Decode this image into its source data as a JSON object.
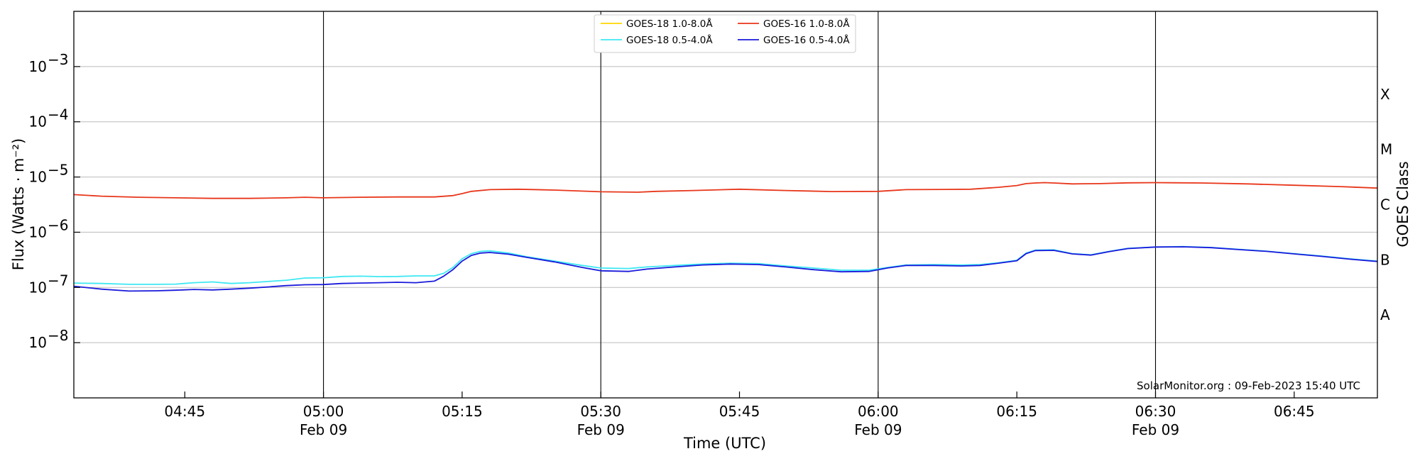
{
  "chart_data": {
    "type": "line",
    "xlabel": "Time (UTC)",
    "ylabel": "Flux (Watts · m⁻²)",
    "ylabel_right": "GOES Class",
    "credit": "SolarMonitor.org : 09-Feb-2023 15:40 UTC",
    "xlim_minutes": [
      "04:33",
      "06:54"
    ],
    "ylim_log10": [
      -9,
      -2
    ],
    "yscale": "log",
    "y_ticks": [
      {
        "exp": -8,
        "label_base": "10",
        "label_exp": "−8"
      },
      {
        "exp": -7,
        "label_base": "10",
        "label_exp": "−7"
      },
      {
        "exp": -6,
        "label_base": "10",
        "label_exp": "−6"
      },
      {
        "exp": -5,
        "label_base": "10",
        "label_exp": "−5"
      },
      {
        "exp": -4,
        "label_base": "10",
        "label_exp": "−4"
      },
      {
        "exp": -3,
        "label_base": "10",
        "label_exp": "−3"
      }
    ],
    "goes_classes": [
      {
        "label": "A",
        "at_exp": -7.5
      },
      {
        "label": "B",
        "at_exp": -6.5
      },
      {
        "label": "C",
        "at_exp": -5.5
      },
      {
        "label": "M",
        "at_exp": -4.5
      },
      {
        "label": "X",
        "at_exp": -3.5
      }
    ],
    "x_ticks": [
      {
        "time": "04:45",
        "label": "04:45",
        "sub": ""
      },
      {
        "time": "05:00",
        "label": "05:00",
        "sub": "Feb 09"
      },
      {
        "time": "05:15",
        "label": "05:15",
        "sub": ""
      },
      {
        "time": "05:30",
        "label": "05:30",
        "sub": "Feb 09"
      },
      {
        "time": "05:45",
        "label": "05:45",
        "sub": ""
      },
      {
        "time": "06:00",
        "label": "06:00",
        "sub": "Feb 09"
      },
      {
        "time": "06:15",
        "label": "06:15",
        "sub": ""
      },
      {
        "time": "06:30",
        "label": "06:30",
        "sub": "Feb 09"
      },
      {
        "time": "06:45",
        "label": "06:45",
        "sub": ""
      }
    ],
    "major_vlines": [
      "05:00",
      "05:30",
      "06:00",
      "06:30"
    ],
    "grid": "horizontal at decades",
    "legend_placement": "top-center",
    "series": [
      {
        "name": "GOES-18 1.0-8.0Å",
        "color": "#ffd700",
        "x": [],
        "y": []
      },
      {
        "name": "GOES-18 0.5-4.0Å",
        "color": "#3ee8f2",
        "x": [
          "04:33",
          "04:36",
          "04:39",
          "04:42",
          "04:44",
          "04:46",
          "04:48",
          "04:50",
          "04:52",
          "04:54",
          "04:56",
          "04:58",
          "05:00",
          "05:02",
          "05:04",
          "05:06",
          "05:08",
          "05:10",
          "05:12",
          "05:13",
          "05:14",
          "05:15",
          "05:16",
          "05:17",
          "05:18",
          "05:20",
          "05:22",
          "05:25",
          "05:28",
          "05:30",
          "05:33",
          "05:35",
          "05:38",
          "05:41",
          "05:44",
          "05:47",
          "05:50",
          "05:53",
          "05:56",
          "05:59",
          "06:01",
          "06:03",
          "06:06",
          "06:09",
          "06:11",
          "06:13",
          "06:15",
          "06:16",
          "06:17",
          "06:19",
          "06:21",
          "06:23",
          "06:25",
          "06:27",
          "06:30",
          "06:33",
          "06:36",
          "06:39",
          "06:42",
          "06:45",
          "06:48",
          "06:51",
          "06:54"
        ],
        "y": [
          1.2e-07,
          1.18e-07,
          1.14e-07,
          1.14e-07,
          1.15e-07,
          1.22e-07,
          1.26e-07,
          1.18e-07,
          1.22e-07,
          1.28e-07,
          1.35e-07,
          1.48e-07,
          1.5e-07,
          1.58e-07,
          1.6e-07,
          1.57e-07,
          1.58e-07,
          1.62e-07,
          1.62e-07,
          1.8e-07,
          2.3e-07,
          3.3e-07,
          4.1e-07,
          4.5e-07,
          4.6e-07,
          4.2e-07,
          3.6e-07,
          3e-07,
          2.5e-07,
          2.25e-07,
          2.2e-07,
          2.35e-07,
          2.5e-07,
          2.65e-07,
          2.75e-07,
          2.7e-07,
          2.45e-07,
          2.25e-07,
          2.05e-07,
          2.05e-07,
          2.3e-07,
          2.55e-07,
          2.6e-07,
          2.55e-07,
          2.6e-07,
          2.8e-07,
          3.1e-07,
          4.2e-07,
          4.75e-07,
          4.8e-07,
          4.1e-07,
          3.9e-07,
          4.5e-07,
          5.1e-07,
          5.4e-07,
          5.5e-07,
          5.3e-07,
          4.9e-07,
          4.55e-07,
          4.1e-07,
          3.7e-07,
          3.3e-07,
          3e-07
        ]
      },
      {
        "name": "GOES-16 1.0-8.0Å",
        "color": "#e8361a",
        "x": [
          "04:33",
          "04:36",
          "04:40",
          "04:44",
          "04:48",
          "04:52",
          "04:56",
          "04:58",
          "05:00",
          "05:04",
          "05:08",
          "05:12",
          "05:14",
          "05:15",
          "05:16",
          "05:18",
          "05:21",
          "05:25",
          "05:30",
          "05:34",
          "05:36",
          "05:40",
          "05:45",
          "05:50",
          "05:55",
          "06:00",
          "06:03",
          "06:07",
          "06:10",
          "06:13",
          "06:15",
          "06:16",
          "06:17",
          "06:18",
          "06:19",
          "06:21",
          "06:24",
          "06:27",
          "06:30",
          "06:35",
          "06:40",
          "06:45",
          "06:50",
          "06:54"
        ],
        "y": [
          4.8e-06,
          4.5e-06,
          4.3e-06,
          4.2e-06,
          4.1e-06,
          4.1e-06,
          4.2e-06,
          4.3e-06,
          4.2e-06,
          4.3e-06,
          4.35e-06,
          4.35e-06,
          4.6e-06,
          5e-06,
          5.5e-06,
          5.9e-06,
          6e-06,
          5.8e-06,
          5.4e-06,
          5.3e-06,
          5.5e-06,
          5.7e-06,
          6e-06,
          5.7e-06,
          5.45e-06,
          5.5e-06,
          5.9e-06,
          5.95e-06,
          6e-06,
          6.5e-06,
          7e-06,
          7.6e-06,
          7.8e-06,
          7.9e-06,
          7.8e-06,
          7.5e-06,
          7.6e-06,
          7.85e-06,
          7.9e-06,
          7.8e-06,
          7.5e-06,
          7.1e-06,
          6.7e-06,
          6.3e-06
        ]
      },
      {
        "name": "GOES-16 0.5-4.0Å",
        "color": "#1a1adb",
        "x": [
          "04:33",
          "04:36",
          "04:39",
          "04:42",
          "04:44",
          "04:46",
          "04:48",
          "04:50",
          "04:52",
          "04:54",
          "04:56",
          "04:58",
          "05:00",
          "05:02",
          "05:04",
          "05:06",
          "05:08",
          "05:10",
          "05:12",
          "05:13",
          "05:14",
          "05:15",
          "05:16",
          "05:17",
          "05:18",
          "05:20",
          "05:22",
          "05:25",
          "05:28",
          "05:30",
          "05:33",
          "05:35",
          "05:38",
          "05:41",
          "05:44",
          "05:47",
          "05:50",
          "05:53",
          "05:56",
          "05:59",
          "06:01",
          "06:03",
          "06:06",
          "06:09",
          "06:11",
          "06:13",
          "06:15",
          "06:16",
          "06:17",
          "06:19",
          "06:21",
          "06:23",
          "06:25",
          "06:27",
          "06:30",
          "06:33",
          "06:36",
          "06:39",
          "06:42",
          "06:45",
          "06:48",
          "06:51",
          "06:54"
        ],
        "y": [
          1.05e-07,
          9.3e-08,
          8.6e-08,
          8.7e-08,
          8.9e-08,
          9.2e-08,
          9e-08,
          9.3e-08,
          9.7e-08,
          1.02e-07,
          1.08e-07,
          1.12e-07,
          1.13e-07,
          1.18e-07,
          1.2e-07,
          1.22e-07,
          1.24e-07,
          1.22e-07,
          1.3e-07,
          1.6e-07,
          2.1e-07,
          3e-07,
          3.8e-07,
          4.2e-07,
          4.3e-07,
          4e-07,
          3.5e-07,
          2.9e-07,
          2.3e-07,
          2e-07,
          1.95e-07,
          2.15e-07,
          2.35e-07,
          2.55e-07,
          2.65e-07,
          2.6e-07,
          2.35e-07,
          2.1e-07,
          1.92e-07,
          1.95e-07,
          2.25e-07,
          2.5e-07,
          2.5e-07,
          2.45e-07,
          2.5e-07,
          2.75e-07,
          3.05e-07,
          4.1e-07,
          4.65e-07,
          4.7e-07,
          4.05e-07,
          3.85e-07,
          4.45e-07,
          5.05e-07,
          5.4e-07,
          5.45e-07,
          5.25e-07,
          4.85e-07,
          4.5e-07,
          4.05e-07,
          3.65e-07,
          3.25e-07,
          2.95e-07
        ]
      }
    ]
  }
}
